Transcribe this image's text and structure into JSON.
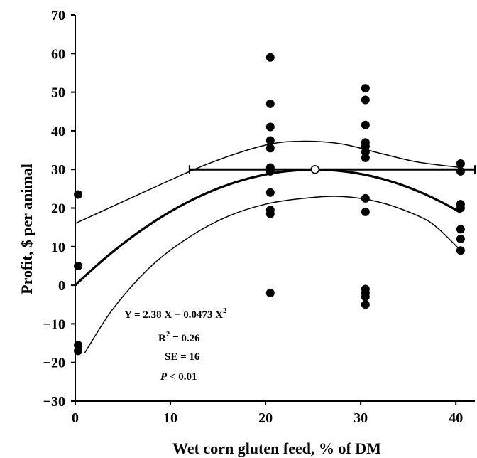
{
  "chart_data": {
    "type": "scatter",
    "xlabel": "Wet corn gluten feed, % of DM",
    "ylabel": "Profit, $ per animal",
    "xlim": [
      0,
      42
    ],
    "ylim": [
      -30,
      70
    ],
    "xticks": [
      "0",
      "10",
      "20",
      "30",
      "40"
    ],
    "yticks": [
      "−30",
      "−20",
      "−10",
      "0",
      "10",
      "20",
      "30",
      "40",
      "50",
      "60",
      "70"
    ],
    "grid": false,
    "points": [
      [
        0.3,
        23.5
      ],
      [
        0.3,
        5
      ],
      [
        0.3,
        -15.5
      ],
      [
        0.3,
        -17
      ],
      [
        20.5,
        59
      ],
      [
        20.5,
        47
      ],
      [
        20.5,
        41
      ],
      [
        20.5,
        37.5
      ],
      [
        20.5,
        35.5
      ],
      [
        20.5,
        30.5
      ],
      [
        20.5,
        29.5
      ],
      [
        20.5,
        24
      ],
      [
        20.5,
        19.5
      ],
      [
        20.5,
        18.5
      ],
      [
        20.5,
        -2
      ],
      [
        30.5,
        51
      ],
      [
        30.5,
        48
      ],
      [
        30.5,
        41.5
      ],
      [
        30.5,
        37
      ],
      [
        30.5,
        36
      ],
      [
        30.5,
        34.5
      ],
      [
        30.5,
        33
      ],
      [
        30.5,
        22.5
      ],
      [
        30.5,
        19
      ],
      [
        30.5,
        -1
      ],
      [
        30.5,
        -2
      ],
      [
        30.5,
        -3
      ],
      [
        30.5,
        -5
      ],
      [
        40.5,
        31.5
      ],
      [
        40.5,
        29.5
      ],
      [
        40.5,
        21
      ],
      [
        40.5,
        20
      ],
      [
        40.5,
        14.5
      ],
      [
        40.5,
        12
      ],
      [
        40.5,
        9
      ]
    ],
    "fit": {
      "a": 0,
      "b": 2.38,
      "c": -0.0473,
      "x_range": [
        0,
        40.5
      ]
    },
    "upper_band": [
      [
        0,
        16
      ],
      [
        8,
        25
      ],
      [
        14,
        31.5
      ],
      [
        20,
        36.3
      ],
      [
        24,
        37.3
      ],
      [
        28,
        36.6
      ],
      [
        32,
        34.2
      ],
      [
        36,
        31.9
      ],
      [
        40.5,
        30.5
      ]
    ],
    "lower_band": [
      [
        1,
        -17.5
      ],
      [
        4,
        -6
      ],
      [
        8,
        5
      ],
      [
        12,
        12.5
      ],
      [
        16,
        17.8
      ],
      [
        20,
        21
      ],
      [
        24,
        22.5
      ],
      [
        28,
        23
      ],
      [
        32,
        21.5
      ],
      [
        36,
        18
      ],
      [
        38,
        15
      ],
      [
        40.5,
        9
      ]
    ],
    "optimum_line": {
      "x": [
        12,
        42
      ],
      "y": 30
    },
    "optimum_point": {
      "x": 25.2,
      "y": 30
    },
    "annotations": [
      {
        "text": "Y = 2.38 X − 0.0473 X",
        "sup": "2"
      },
      {
        "text": "R",
        "sup": "2",
        "tail": " = 0.26"
      },
      {
        "text": "SE = 16"
      },
      {
        "italic": "P",
        "tail": " < 0.01"
      }
    ]
  }
}
